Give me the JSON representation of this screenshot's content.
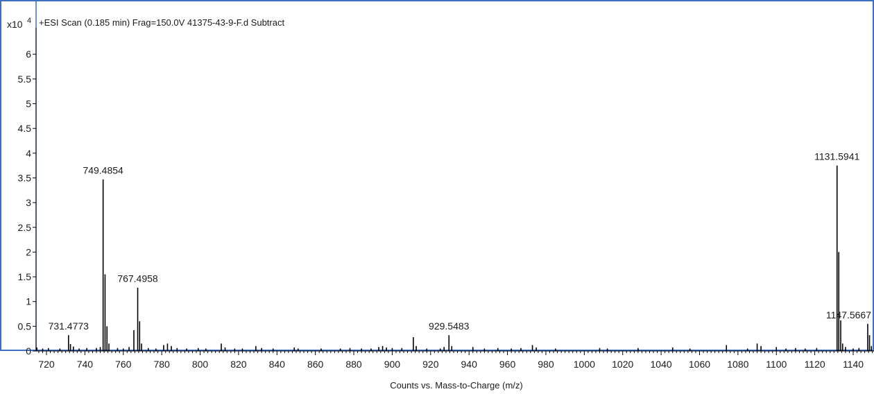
{
  "chart_data": {
    "type": "bar",
    "title": "+ESI Scan (0.185 min) Frag=150.0V 41375-43-9-F.d  Subtract",
    "y_multiplier": "x10",
    "y_exponent": "4",
    "xlabel": "Counts vs. Mass-to-Charge (m/z)",
    "ylabel": "",
    "xlim": [
      712,
      1158
    ],
    "ylim": [
      0,
      6.5
    ],
    "x_ticks": [
      720,
      740,
      760,
      780,
      800,
      820,
      840,
      860,
      880,
      900,
      920,
      940,
      960,
      980,
      1000,
      1020,
      1040,
      1060,
      1080,
      1100,
      1120,
      1140
    ],
    "y_ticks": [
      0,
      0.5,
      1,
      1.5,
      2,
      2.5,
      3,
      3.5,
      4,
      4.5,
      5,
      5.5,
      6
    ],
    "y_tick_labels": [
      "0",
      "0.5",
      "1",
      "1.5",
      "2",
      "2.5",
      "3",
      "3.5",
      "4",
      "4.5",
      "5",
      "5.5",
      "6"
    ],
    "grid": false,
    "legend": "none",
    "line_color": "#000000",
    "frame_color": "#3a6fc4",
    "peaks": [
      {
        "x": 713,
        "y": 0.1
      },
      {
        "x": 715,
        "y": 0.07
      },
      {
        "x": 718,
        "y": 0.05
      },
      {
        "x": 721,
        "y": 0.06
      },
      {
        "x": 727,
        "y": 0.05
      },
      {
        "x": 731.4773,
        "y": 0.32
      },
      {
        "x": 732.5,
        "y": 0.14
      },
      {
        "x": 734,
        "y": 0.09
      },
      {
        "x": 737,
        "y": 0.05
      },
      {
        "x": 741,
        "y": 0.06
      },
      {
        "x": 746,
        "y": 0.06
      },
      {
        "x": 748,
        "y": 0.08
      },
      {
        "x": 749.4854,
        "y": 3.47
      },
      {
        "x": 750.5,
        "y": 1.55
      },
      {
        "x": 751.5,
        "y": 0.5
      },
      {
        "x": 752.5,
        "y": 0.15
      },
      {
        "x": 757,
        "y": 0.06
      },
      {
        "x": 760,
        "y": 0.05
      },
      {
        "x": 763,
        "y": 0.08
      },
      {
        "x": 765.5,
        "y": 0.42
      },
      {
        "x": 767.4958,
        "y": 1.28
      },
      {
        "x": 768.5,
        "y": 0.6
      },
      {
        "x": 769.5,
        "y": 0.15
      },
      {
        "x": 773,
        "y": 0.06
      },
      {
        "x": 777,
        "y": 0.05
      },
      {
        "x": 781,
        "y": 0.12
      },
      {
        "x": 783,
        "y": 0.15
      },
      {
        "x": 785,
        "y": 0.1
      },
      {
        "x": 788,
        "y": 0.06
      },
      {
        "x": 793,
        "y": 0.05
      },
      {
        "x": 799,
        "y": 0.06
      },
      {
        "x": 803,
        "y": 0.05
      },
      {
        "x": 811,
        "y": 0.15
      },
      {
        "x": 813,
        "y": 0.07
      },
      {
        "x": 818,
        "y": 0.05
      },
      {
        "x": 822,
        "y": 0.05
      },
      {
        "x": 829,
        "y": 0.1
      },
      {
        "x": 832,
        "y": 0.06
      },
      {
        "x": 838,
        "y": 0.05
      },
      {
        "x": 849,
        "y": 0.07
      },
      {
        "x": 851,
        "y": 0.05
      },
      {
        "x": 863,
        "y": 0.05
      },
      {
        "x": 873,
        "y": 0.05
      },
      {
        "x": 878,
        "y": 0.06
      },
      {
        "x": 884,
        "y": 0.05
      },
      {
        "x": 889,
        "y": 0.05
      },
      {
        "x": 893,
        "y": 0.08
      },
      {
        "x": 895,
        "y": 0.1
      },
      {
        "x": 897,
        "y": 0.07
      },
      {
        "x": 900,
        "y": 0.06
      },
      {
        "x": 905,
        "y": 0.06
      },
      {
        "x": 911,
        "y": 0.28
      },
      {
        "x": 912.5,
        "y": 0.1
      },
      {
        "x": 918,
        "y": 0.05
      },
      {
        "x": 925,
        "y": 0.05
      },
      {
        "x": 927,
        "y": 0.08
      },
      {
        "x": 929.5483,
        "y": 0.32
      },
      {
        "x": 931,
        "y": 0.1
      },
      {
        "x": 942,
        "y": 0.08
      },
      {
        "x": 948,
        "y": 0.05
      },
      {
        "x": 955,
        "y": 0.06
      },
      {
        "x": 962,
        "y": 0.05
      },
      {
        "x": 967,
        "y": 0.06
      },
      {
        "x": 973,
        "y": 0.12
      },
      {
        "x": 975,
        "y": 0.07
      },
      {
        "x": 985,
        "y": 0.05
      },
      {
        "x": 1008,
        "y": 0.06
      },
      {
        "x": 1012,
        "y": 0.05
      },
      {
        "x": 1028,
        "y": 0.06
      },
      {
        "x": 1046,
        "y": 0.07
      },
      {
        "x": 1055,
        "y": 0.05
      },
      {
        "x": 1074,
        "y": 0.12
      },
      {
        "x": 1085,
        "y": 0.05
      },
      {
        "x": 1090,
        "y": 0.15
      },
      {
        "x": 1092,
        "y": 0.1
      },
      {
        "x": 1100,
        "y": 0.08
      },
      {
        "x": 1105,
        "y": 0.05
      },
      {
        "x": 1110,
        "y": 0.06
      },
      {
        "x": 1115,
        "y": 0.05
      },
      {
        "x": 1121,
        "y": 0.06
      },
      {
        "x": 1131.5941,
        "y": 3.75
      },
      {
        "x": 1132.5,
        "y": 2.0
      },
      {
        "x": 1133.5,
        "y": 0.62
      },
      {
        "x": 1134.5,
        "y": 0.15
      },
      {
        "x": 1136,
        "y": 0.08
      },
      {
        "x": 1140,
        "y": 0.05
      },
      {
        "x": 1143,
        "y": 0.06
      },
      {
        "x": 1147.5667,
        "y": 0.55
      },
      {
        "x": 1148.5,
        "y": 0.32
      },
      {
        "x": 1149.5,
        "y": 0.1
      },
      {
        "x": 1152,
        "y": 0.06
      },
      {
        "x": 1155,
        "y": 0.05
      }
    ],
    "peak_labels": [
      {
        "x": 731.4773,
        "y": 0.32,
        "text": "731.4773"
      },
      {
        "x": 749.4854,
        "y": 3.47,
        "text": "749.4854"
      },
      {
        "x": 767.4958,
        "y": 1.28,
        "text": "767.4958"
      },
      {
        "x": 929.5483,
        "y": 0.32,
        "text": "929.5483"
      },
      {
        "x": 1131.5941,
        "y": 3.75,
        "text": "1131.5941"
      },
      {
        "x": 1147.5667,
        "y": 0.55,
        "text": "1147.5667"
      }
    ]
  }
}
